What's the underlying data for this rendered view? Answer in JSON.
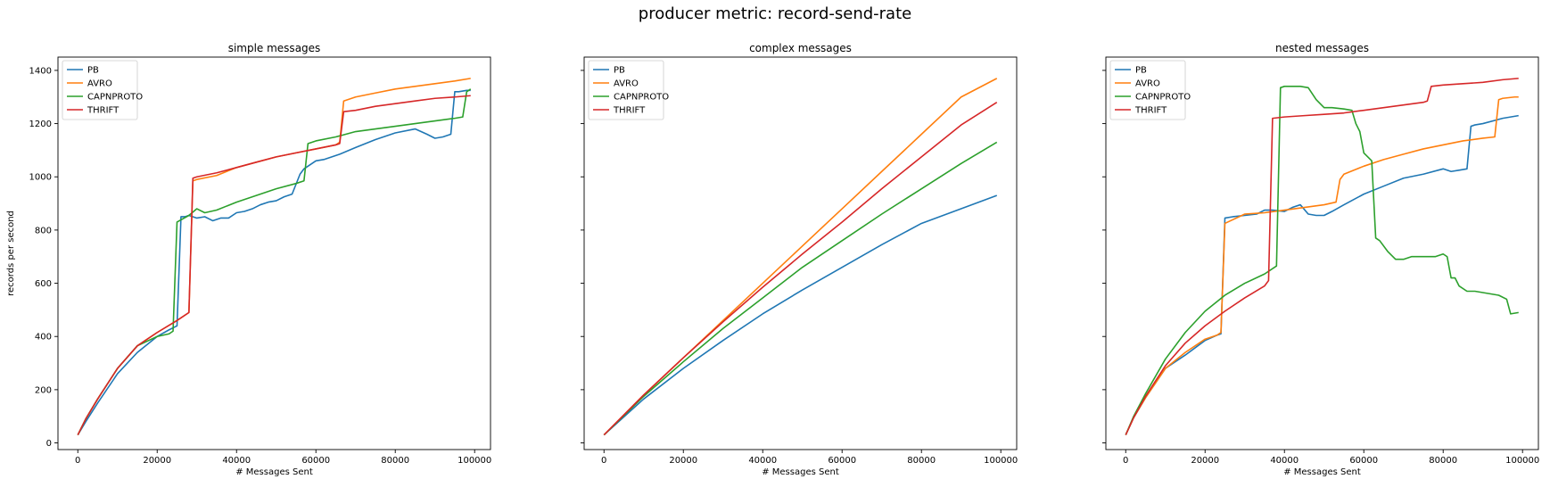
{
  "figure_title": "producer metric: record-send-rate",
  "chart_data": [
    {
      "type": "line",
      "title": "simple messages",
      "xlabel": "# Messages Sent",
      "ylabel": "records per second",
      "xlim": [
        -5000,
        104000
      ],
      "ylim": [
        -25,
        1450
      ],
      "xticks": [
        0,
        20000,
        40000,
        60000,
        80000,
        100000
      ],
      "yticks": [
        0,
        200,
        400,
        600,
        800,
        1000,
        1200,
        1400
      ],
      "legend_position": "upper-left",
      "series": [
        {
          "name": "PB",
          "color": "#1f77b4",
          "x": [
            0,
            2000,
            5000,
            10000,
            15000,
            20000,
            23000,
            25000,
            26000,
            27000,
            28000,
            30000,
            32000,
            34000,
            36000,
            38000,
            40000,
            42000,
            44000,
            46000,
            48000,
            50000,
            52000,
            54000,
            56000,
            57000,
            58000,
            60000,
            62000,
            64000,
            66000,
            70000,
            75000,
            80000,
            85000,
            88000,
            90000,
            92000,
            94000,
            95000,
            96000,
            98000,
            99000
          ],
          "y": [
            30,
            80,
            150,
            260,
            340,
            400,
            425,
            440,
            850,
            850,
            855,
            845,
            850,
            835,
            845,
            845,
            865,
            870,
            880,
            895,
            905,
            910,
            925,
            935,
            1010,
            1030,
            1040,
            1060,
            1065,
            1075,
            1085,
            1110,
            1140,
            1165,
            1180,
            1160,
            1145,
            1150,
            1160,
            1320,
            1320,
            1325,
            1325
          ]
        },
        {
          "name": "AVRO",
          "color": "#ff7f0e",
          "x": [
            0,
            2000,
            5000,
            10000,
            15000,
            20000,
            25000,
            28000,
            29000,
            30000,
            35000,
            40000,
            45000,
            50000,
            55000,
            60000,
            65000,
            66000,
            67000,
            70000,
            75000,
            80000,
            85000,
            90000,
            95000,
            99000
          ],
          "y": [
            30,
            90,
            165,
            280,
            365,
            415,
            460,
            490,
            985,
            990,
            1005,
            1035,
            1055,
            1075,
            1090,
            1105,
            1120,
            1130,
            1285,
            1300,
            1315,
            1330,
            1340,
            1350,
            1360,
            1370
          ]
        },
        {
          "name": "CAPNPROTO",
          "color": "#2ca02c",
          "x": [
            0,
            2000,
            5000,
            10000,
            15000,
            20000,
            23000,
            24000,
            25000,
            28000,
            30000,
            32000,
            35000,
            40000,
            45000,
            50000,
            55000,
            57000,
            58000,
            60000,
            65000,
            70000,
            75000,
            80000,
            85000,
            90000,
            95000,
            97000,
            98000,
            99000
          ],
          "y": [
            30,
            90,
            165,
            280,
            365,
            400,
            410,
            420,
            830,
            855,
            880,
            865,
            875,
            905,
            930,
            955,
            975,
            985,
            1125,
            1135,
            1150,
            1170,
            1180,
            1190,
            1200,
            1210,
            1220,
            1225,
            1320,
            1330
          ]
        },
        {
          "name": "THRIFT",
          "color": "#d62728",
          "x": [
            0,
            2000,
            5000,
            10000,
            15000,
            20000,
            25000,
            28000,
            29000,
            30000,
            35000,
            40000,
            45000,
            50000,
            55000,
            60000,
            65000,
            66000,
            67000,
            70000,
            75000,
            80000,
            85000,
            90000,
            95000,
            99000
          ],
          "y": [
            30,
            90,
            165,
            280,
            365,
            415,
            460,
            490,
            995,
            1000,
            1015,
            1035,
            1055,
            1075,
            1090,
            1105,
            1120,
            1125,
            1245,
            1250,
            1265,
            1275,
            1285,
            1295,
            1300,
            1305
          ]
        }
      ]
    },
    {
      "type": "line",
      "title": "complex messages",
      "xlabel": "# Messages Sent",
      "ylabel": "",
      "xlim": [
        -5000,
        104000
      ],
      "ylim": [
        -25,
        1450
      ],
      "xticks": [
        0,
        20000,
        40000,
        60000,
        80000,
        100000
      ],
      "yticks": [
        0,
        200,
        400,
        600,
        800,
        1000,
        1200,
        1400
      ],
      "legend_position": "upper-left",
      "series": [
        {
          "name": "PB",
          "color": "#1f77b4",
          "x": [
            0,
            10000,
            20000,
            30000,
            40000,
            50000,
            60000,
            70000,
            80000,
            90000,
            99000
          ],
          "y": [
            30,
            165,
            280,
            385,
            485,
            575,
            660,
            745,
            825,
            880,
            930
          ]
        },
        {
          "name": "AVRO",
          "color": "#ff7f0e",
          "x": [
            0,
            10000,
            20000,
            30000,
            40000,
            50000,
            60000,
            70000,
            80000,
            90000,
            99000
          ],
          "y": [
            30,
            180,
            320,
            460,
            600,
            740,
            880,
            1020,
            1160,
            1300,
            1370
          ]
        },
        {
          "name": "CAPNPROTO",
          "color": "#2ca02c",
          "x": [
            0,
            10000,
            20000,
            30000,
            40000,
            50000,
            60000,
            70000,
            80000,
            90000,
            99000
          ],
          "y": [
            30,
            175,
            305,
            430,
            545,
            660,
            760,
            860,
            955,
            1050,
            1130
          ]
        },
        {
          "name": "THRIFT",
          "color": "#d62728",
          "x": [
            0,
            10000,
            20000,
            30000,
            40000,
            50000,
            60000,
            70000,
            80000,
            90000,
            99000
          ],
          "y": [
            30,
            180,
            320,
            455,
            585,
            710,
            830,
            955,
            1075,
            1195,
            1280
          ]
        }
      ]
    },
    {
      "type": "line",
      "title": "nested messages",
      "xlabel": "# Messages Sent",
      "ylabel": "",
      "xlim": [
        -5000,
        104000
      ],
      "ylim": [
        -25,
        1450
      ],
      "xticks": [
        0,
        20000,
        40000,
        60000,
        80000,
        100000
      ],
      "yticks": [
        0,
        200,
        400,
        600,
        800,
        1000,
        1200,
        1400
      ],
      "legend_position": "upper-left",
      "series": [
        {
          "name": "PB",
          "color": "#1f77b4",
          "x": [
            0,
            2000,
            5000,
            10000,
            15000,
            20000,
            23000,
            24000,
            25000,
            27000,
            30000,
            33000,
            35000,
            37000,
            40000,
            42000,
            44000,
            46000,
            48000,
            50000,
            52000,
            55000,
            60000,
            65000,
            70000,
            75000,
            80000,
            82000,
            84000,
            86000,
            87000,
            88000,
            90000,
            95000,
            99000
          ],
          "y": [
            30,
            95,
            170,
            280,
            330,
            385,
            405,
            410,
            845,
            850,
            855,
            860,
            875,
            875,
            870,
            885,
            895,
            860,
            855,
            855,
            870,
            895,
            935,
            965,
            995,
            1010,
            1030,
            1020,
            1025,
            1030,
            1190,
            1195,
            1200,
            1220,
            1230
          ]
        },
        {
          "name": "AVRO",
          "color": "#ff7f0e",
          "x": [
            0,
            2000,
            5000,
            10000,
            15000,
            20000,
            23000,
            24000,
            25000,
            30000,
            35000,
            40000,
            45000,
            50000,
            53000,
            54000,
            55000,
            60000,
            65000,
            70000,
            75000,
            80000,
            85000,
            90000,
            93000,
            94000,
            95000,
            98000,
            99000
          ],
          "y": [
            30,
            95,
            170,
            280,
            340,
            390,
            405,
            415,
            825,
            860,
            865,
            875,
            885,
            895,
            905,
            990,
            1010,
            1040,
            1065,
            1085,
            1105,
            1120,
            1135,
            1145,
            1150,
            1290,
            1295,
            1300,
            1300
          ]
        },
        {
          "name": "CAPNPROTO",
          "color": "#2ca02c",
          "x": [
            0,
            2000,
            5000,
            10000,
            15000,
            20000,
            25000,
            30000,
            35000,
            38000,
            39000,
            40000,
            42000,
            44000,
            46000,
            48000,
            50000,
            52000,
            55000,
            57000,
            58000,
            59000,
            60000,
            62000,
            63000,
            64000,
            66000,
            68000,
            70000,
            72000,
            75000,
            78000,
            80000,
            81000,
            82000,
            83000,
            84000,
            86000,
            88000,
            90000,
            92000,
            94000,
            96000,
            97000,
            99000
          ],
          "y": [
            30,
            100,
            185,
            315,
            415,
            495,
            555,
            600,
            635,
            665,
            1335,
            1340,
            1340,
            1340,
            1335,
            1290,
            1260,
            1260,
            1255,
            1250,
            1200,
            1170,
            1090,
            1060,
            770,
            760,
            720,
            690,
            690,
            700,
            700,
            700,
            710,
            700,
            620,
            620,
            590,
            570,
            570,
            565,
            560,
            555,
            540,
            485,
            490
          ]
        },
        {
          "name": "THRIFT",
          "color": "#d62728",
          "x": [
            0,
            2000,
            5000,
            10000,
            15000,
            20000,
            25000,
            30000,
            35000,
            36000,
            37000,
            40000,
            45000,
            50000,
            55000,
            60000,
            65000,
            70000,
            75000,
            76000,
            77000,
            80000,
            85000,
            90000,
            95000,
            99000
          ],
          "y": [
            30,
            95,
            175,
            290,
            375,
            440,
            495,
            545,
            590,
            610,
            1220,
            1225,
            1230,
            1235,
            1240,
            1250,
            1260,
            1270,
            1280,
            1285,
            1340,
            1345,
            1350,
            1355,
            1365,
            1370
          ]
        }
      ]
    }
  ]
}
